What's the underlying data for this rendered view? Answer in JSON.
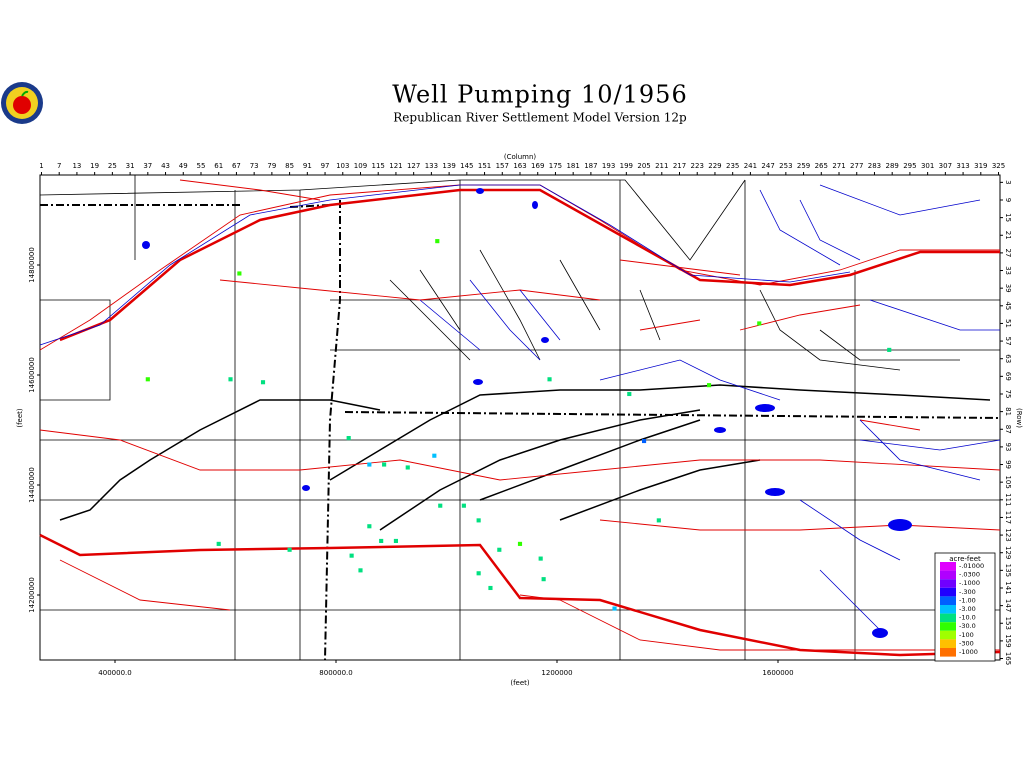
{
  "header": {
    "title": "Well Pumping 10/1956",
    "subtitle": "Republican River Settlement Model Version 12p"
  },
  "axes": {
    "column_label": "(Column)",
    "row_label": "(Row)",
    "x_feet_label": "(feet)",
    "y_feet_label": "(feet)",
    "columns": 325,
    "rows": 165,
    "column_ticks": [
      1,
      7,
      13,
      19,
      25,
      31,
      37,
      43,
      49,
      55,
      61,
      67,
      73,
      79,
      85,
      91,
      97,
      103,
      109,
      115,
      121,
      127,
      133,
      139,
      145,
      151,
      157,
      163,
      169,
      175,
      181,
      187,
      193,
      199,
      205,
      211,
      217,
      223,
      229,
      235,
      241,
      247,
      253,
      259,
      265,
      271,
      277,
      283,
      289,
      295,
      301,
      307,
      313,
      319,
      325
    ],
    "row_ticks": [
      3,
      9,
      15,
      21,
      27,
      33,
      39,
      45,
      51,
      57,
      63,
      69,
      75,
      81,
      87,
      93,
      99,
      105,
      111,
      117,
      123,
      129,
      135,
      141,
      147,
      153,
      159,
      165
    ],
    "x_feet_ticks": [
      {
        "value": 400000,
        "label": "400000.0"
      },
      {
        "value": 800000,
        "label": "800000.0"
      },
      1200000,
      1600000
    ],
    "y_feet_ticks": [
      14800000,
      14600000,
      14400000,
      14200000
    ]
  },
  "legend": {
    "title": "acre-feet",
    "bins": [
      {
        "value": -0.01,
        "label": "-.01000"
      },
      {
        "value": -0.03,
        "label": "-.0300"
      },
      {
        "value": -0.1,
        "label": "-.1000"
      },
      {
        "value": -0.3,
        "label": "-.300"
      },
      {
        "value": -1,
        "label": "-1.00"
      },
      {
        "value": -3,
        "label": "-3.00"
      },
      {
        "value": -10,
        "label": "-10.0"
      },
      {
        "value": -30,
        "label": "-30.0"
      },
      {
        "value": -100,
        "label": "-100"
      },
      {
        "value": -300,
        "label": "-300"
      },
      {
        "value": -1000,
        "label": "-1000"
      }
    ],
    "colors": [
      "#e000ff",
      "#b000ff",
      "#7000ff",
      "#2000ff",
      "#0060ff",
      "#00c0ff",
      "#00e080",
      "#30ff00",
      "#a0ff00",
      "#ffc000",
      "#ff7000"
    ]
  },
  "cells": [
    {
      "col": 112,
      "row": 120,
      "value": -10
    },
    {
      "col": 116,
      "row": 125,
      "value": -10
    },
    {
      "col": 106,
      "row": 130,
      "value": -10
    },
    {
      "col": 109,
      "row": 135,
      "value": -10
    },
    {
      "col": 121,
      "row": 125,
      "value": -10
    },
    {
      "col": 136,
      "row": 113,
      "value": -10
    },
    {
      "col": 144,
      "row": 113,
      "value": -10
    },
    {
      "col": 149,
      "row": 118,
      "value": -10
    },
    {
      "col": 156,
      "row": 128,
      "value": -10
    },
    {
      "col": 163,
      "row": 126,
      "value": -30
    },
    {
      "col": 170,
      "row": 131,
      "value": -10
    },
    {
      "col": 171,
      "row": 138,
      "value": -10
    },
    {
      "col": 149,
      "row": 136,
      "value": -10
    },
    {
      "col": 153,
      "row": 141,
      "value": -10
    },
    {
      "col": 105,
      "row": 90,
      "value": -10
    },
    {
      "col": 112,
      "row": 99,
      "value": -3
    },
    {
      "col": 117,
      "row": 99,
      "value": -10
    },
    {
      "col": 125,
      "row": 100,
      "value": -10
    },
    {
      "col": 68,
      "row": 34,
      "value": -30
    },
    {
      "col": 65,
      "row": 70,
      "value": -10
    },
    {
      "col": 37,
      "row": 70,
      "value": -30
    },
    {
      "col": 76,
      "row": 71,
      "value": -10
    },
    {
      "col": 135,
      "row": 23,
      "value": -30
    },
    {
      "col": 173,
      "row": 70,
      "value": -10
    },
    {
      "col": 200,
      "row": 75,
      "value": -10
    },
    {
      "col": 210,
      "row": 118,
      "value": -10
    },
    {
      "col": 227,
      "row": 72,
      "value": -30
    },
    {
      "col": 244,
      "row": 51,
      "value": -30
    },
    {
      "col": 288,
      "row": 60,
      "value": -10
    },
    {
      "col": 61,
      "row": 126,
      "value": -10
    },
    {
      "col": 85,
      "row": 128,
      "value": -10
    },
    {
      "col": 195,
      "row": 148,
      "value": -3
    },
    {
      "col": 205,
      "row": 91,
      "value": -1
    },
    {
      "col": 134,
      "row": 96,
      "value": -3
    }
  ]
}
